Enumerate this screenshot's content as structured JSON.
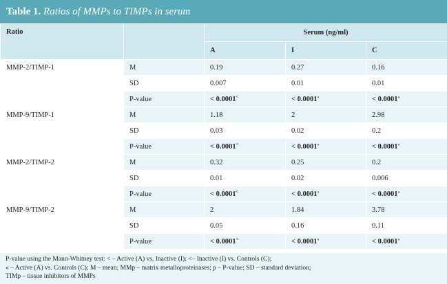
{
  "title": {
    "label": "Table 1.",
    "text": "Ratios of MMPs to TIMPs in serum"
  },
  "header": {
    "ratio": "Ratio",
    "serum": "Serum (ng/ml)",
    "columns": [
      "A",
      "I",
      "C"
    ]
  },
  "groups": [
    {
      "name": "MMP-2/TIMP-1",
      "rows": [
        {
          "stat": "M",
          "values": [
            "0.19",
            "0.27",
            "0.16"
          ],
          "bold": false
        },
        {
          "stat": "SD",
          "values": [
            "0.007",
            "0.01",
            "0.01"
          ],
          "bold": false
        },
        {
          "stat": "P-value",
          "values": [
            "< 0.0001",
            "< 0.0001",
            "< 0.0001"
          ],
          "sups": [
            "<",
            "«",
            "«"
          ],
          "bold": true
        }
      ]
    },
    {
      "name": "MMP-9/TIMP-1",
      "rows": [
        {
          "stat": "M",
          "values": [
            "1.18",
            "2",
            "2.98"
          ],
          "bold": false
        },
        {
          "stat": "SD",
          "values": [
            "0.03",
            "0.02",
            "0.2"
          ],
          "bold": false
        },
        {
          "stat": "P-value",
          "values": [
            "< 0.0001",
            "< 0.0001",
            "< 0.0001"
          ],
          "sups": [
            "<",
            "«",
            "«"
          ],
          "bold": true
        }
      ]
    },
    {
      "name": "MMP-2/TIMP-2",
      "rows": [
        {
          "stat": "M",
          "values": [
            "0.32",
            "0.25",
            "0.2"
          ],
          "bold": false
        },
        {
          "stat": "SD",
          "values": [
            "0.01",
            "0.02",
            "0.006"
          ],
          "bold": false
        },
        {
          "stat": "P-value",
          "values": [
            "< 0.0001",
            "< 0.0001",
            "< 0.0001"
          ],
          "sups": [
            "<",
            "«",
            "«"
          ],
          "bold": true
        }
      ]
    },
    {
      "name": "MMP-9/TIMP-2",
      "rows": [
        {
          "stat": "M",
          "values": [
            "2",
            "1.84",
            "3.78"
          ],
          "bold": false
        },
        {
          "stat": "SD",
          "values": [
            "0.05",
            "0.16",
            "0.11"
          ],
          "bold": false
        },
        {
          "stat": "P-value",
          "values": [
            "< 0.0001",
            "< 0.0001",
            "< 0.0001"
          ],
          "sups": [
            "<",
            "«",
            "«"
          ],
          "bold": true
        }
      ]
    }
  ],
  "footnote": [
    "P-value using the Mann-Whitney test: < – Active (A) vs. Inactive (I); <– Inactive (I) vs. Controls (C);",
    "« – Active (A) vs. Controls (C); M – mean; MMp – matrix metalloproteinases; p – P-value; SD – standard deviation;",
    "TIMp – tissue inhibitors of MMPs"
  ],
  "colors": {
    "title_bar": "#5aa9b8",
    "row_dark": "#cfe8ee",
    "row_light": "#e8f4f7"
  }
}
